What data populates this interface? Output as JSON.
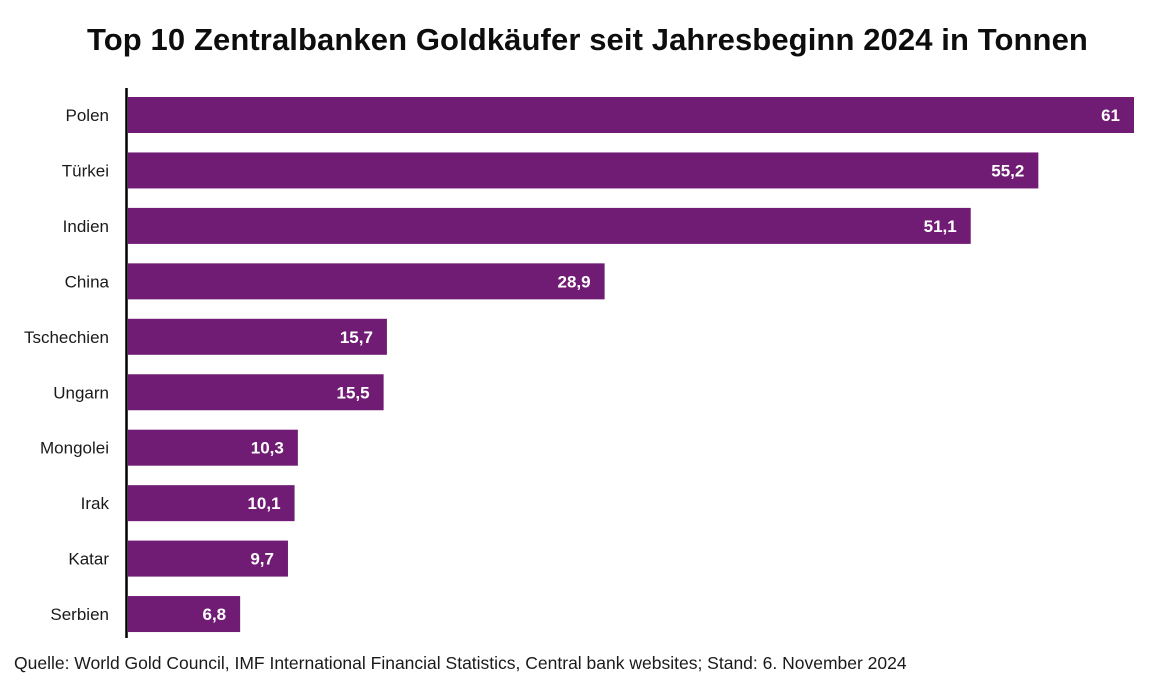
{
  "chart_data": {
    "type": "bar",
    "orientation": "horizontal",
    "title": "Top 10 Zentralbanken Goldkäufer seit Jahresbeginn 2024 in Tonnen",
    "categories": [
      "Polen",
      "Türkei",
      "Indien",
      "China",
      "Tschechien",
      "Ungarn",
      "Mongolei",
      "Irak",
      "Katar",
      "Serbien"
    ],
    "values": [
      61,
      55.2,
      51.1,
      28.9,
      15.7,
      15.5,
      10.3,
      10.1,
      9.7,
      6.8
    ],
    "value_labels": [
      "61",
      "55,2",
      "51,1",
      "28,9",
      "15,7",
      "15,5",
      "10,3",
      "10,1",
      "9,7",
      "6,8"
    ],
    "xlabel": "",
    "ylabel": "",
    "xlim": [
      0,
      61
    ],
    "grid": false,
    "legend": "none",
    "bar_color": "#701c74",
    "source": "Quelle: World Gold Council, IMF International Financial Statistics, Central bank websites; Stand: 6. November 2024"
  }
}
